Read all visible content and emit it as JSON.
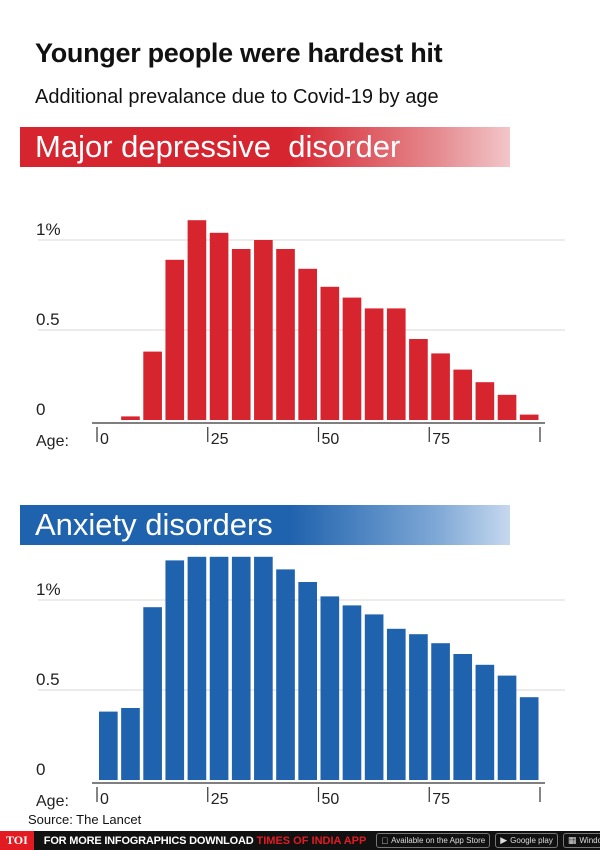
{
  "header": {
    "title": "Younger people were hardest hit",
    "subtitle": "Additional prevalance due to Covid-19 by age"
  },
  "chart_data": [
    {
      "type": "bar",
      "title": "Major depressive  disorder",
      "color": "#d72530",
      "x": [
        0,
        5,
        10,
        15,
        20,
        25,
        30,
        35,
        40,
        45,
        50,
        55,
        60,
        65,
        70,
        75,
        80,
        85,
        90,
        95
      ],
      "values": [
        0,
        0.02,
        0.38,
        0.89,
        1.11,
        1.04,
        0.95,
        1.0,
        0.95,
        0.84,
        0.74,
        0.68,
        0.62,
        0.62,
        0.45,
        0.37,
        0.28,
        0.21,
        0.14,
        0.03
      ],
      "xlabel": "Age:",
      "x_ticks": [
        "0",
        "25",
        "50",
        "75"
      ],
      "y_ticks": [
        "0",
        "0.5",
        "1%"
      ],
      "ylim": [
        0,
        1.2
      ],
      "grid": true
    },
    {
      "type": "bar",
      "title": "Anxiety disorders",
      "color": "#1f62ad",
      "x": [
        0,
        5,
        10,
        15,
        20,
        25,
        30,
        35,
        40,
        45,
        50,
        55,
        60,
        65,
        70,
        75,
        80,
        85,
        90,
        95
      ],
      "values": [
        0.38,
        0.4,
        0.96,
        1.22,
        1.24,
        1.24,
        1.24,
        1.24,
        1.17,
        1.1,
        1.02,
        0.97,
        0.92,
        0.84,
        0.81,
        0.76,
        0.7,
        0.64,
        0.58,
        0.46
      ],
      "xlabel": "Age:",
      "x_ticks": [
        "0",
        "25",
        "50",
        "75"
      ],
      "y_ticks": [
        "0",
        "0.5",
        "1%"
      ],
      "ylim": [
        0,
        1.2
      ],
      "grid": true
    }
  ],
  "footer": {
    "source": "Source: The Lancet",
    "logo": "TOI",
    "promo_text": "FOR MORE  INFOGRAPHICS DOWNLOAD",
    "promo_brand": "TIMES OF INDIA  APP",
    "stores": [
      "Available on the App Store",
      "Google play",
      "Windows Phone"
    ]
  }
}
